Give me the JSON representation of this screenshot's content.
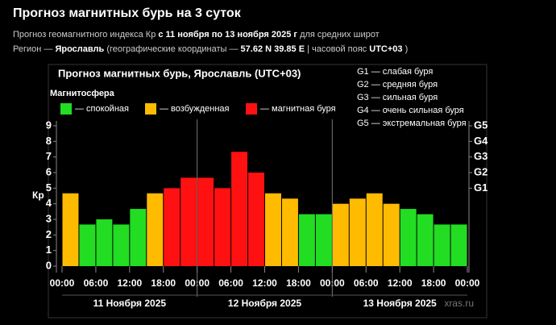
{
  "header": {
    "title": "Прогноз магнитных бурь на 3 суток",
    "line1": [
      {
        "text": "Прогноз геомагнитного индекса Кр",
        "bold": false
      },
      {
        "text": "с 11 ноября по 13 ноября 2025 г",
        "bold": true
      },
      {
        "text": "для средних широт",
        "bold": false
      }
    ],
    "line2": [
      {
        "text": "Регион —",
        "bold": false
      },
      {
        "text": "Ярославль",
        "bold": true
      },
      {
        "text": "(географические координаты —",
        "bold": false
      },
      {
        "text": "57.62 N 39.85 E",
        "bold": true
      },
      {
        "text": "| часовой пояс",
        "bold": false
      },
      {
        "text": "UTC+03",
        "bold": true
      },
      {
        "text": ")",
        "bold": false
      }
    ]
  },
  "chart_data": {
    "type": "bar",
    "title": "Прогноз магнитных бурь, Ярославль (UTC+03)",
    "y_label": "Кр",
    "legend_title": "Магнитосфера",
    "legend": [
      {
        "label": "— спокойная",
        "color": "#22dd22"
      },
      {
        "label": "— возбужденная",
        "color": "#ffbb00"
      },
      {
        "label": "— магнитная буря",
        "color": "#ff1111"
      }
    ],
    "g_legend": [
      "G1 — слабая буря",
      "G2 — средняя буря",
      "G3 — сильная буря",
      "G4 — очень сильная буря",
      "G5 — экстремальная буря"
    ],
    "x": [
      0,
      3,
      6,
      9,
      12,
      15,
      18,
      21,
      24,
      27,
      30,
      33,
      36,
      39,
      42,
      45,
      48,
      51,
      54,
      57,
      60,
      63,
      66,
      69
    ],
    "values": [
      4.67,
      2.67,
      3,
      2.67,
      3.67,
      4.67,
      5,
      5.67,
      5.67,
      5,
      7.33,
      6,
      4.67,
      4.33,
      3.33,
      3.33,
      4,
      4.33,
      4.67,
      4,
      3.67,
      3.33,
      2.67,
      2.67
    ],
    "colors": [
      "#ffbb00",
      "#22dd22",
      "#22dd22",
      "#22dd22",
      "#22dd22",
      "#ffbb00",
      "#ff1111",
      "#ff1111",
      "#ff1111",
      "#ff1111",
      "#ff1111",
      "#ff1111",
      "#ffbb00",
      "#ffbb00",
      "#22dd22",
      "#22dd22",
      "#ffbb00",
      "#ffbb00",
      "#ffbb00",
      "#ffbb00",
      "#22dd22",
      "#22dd22",
      "#22dd22",
      "#22dd22"
    ],
    "bar_width": 3,
    "xlim": [
      0,
      72
    ],
    "xticks": [
      {
        "value": 0,
        "label": "00:00"
      },
      {
        "value": 6,
        "label": "06:00"
      },
      {
        "value": 12,
        "label": "12:00"
      },
      {
        "value": 18,
        "label": "18:00"
      },
      {
        "value": 24,
        "label": "00:00"
      },
      {
        "value": 30,
        "label": "06:00"
      },
      {
        "value": 36,
        "label": "12:00"
      },
      {
        "value": 42,
        "label": "18:00"
      },
      {
        "value": 48,
        "label": "00:00"
      },
      {
        "value": 54,
        "label": "06:00"
      },
      {
        "value": 60,
        "label": "12:00"
      },
      {
        "value": 66,
        "label": "18:00"
      },
      {
        "value": 72,
        "label": "00:00"
      }
    ],
    "ylim": [
      0,
      9
    ],
    "yticks": [
      0,
      1,
      2,
      3,
      4,
      5,
      6,
      7,
      8,
      9
    ],
    "y2lim": [
      0,
      9
    ],
    "y2ticks": [
      {
        "value": 5,
        "label": "G1"
      },
      {
        "value": 6,
        "label": "G2"
      },
      {
        "value": 7,
        "label": "G3"
      },
      {
        "value": 8,
        "label": "G4"
      },
      {
        "value": 9,
        "label": "G5"
      }
    ],
    "days": [
      "11 Ноября 2025",
      "12 Ноября 2025",
      "13 Ноября 2025"
    ],
    "watermark": "xras.ru"
  }
}
